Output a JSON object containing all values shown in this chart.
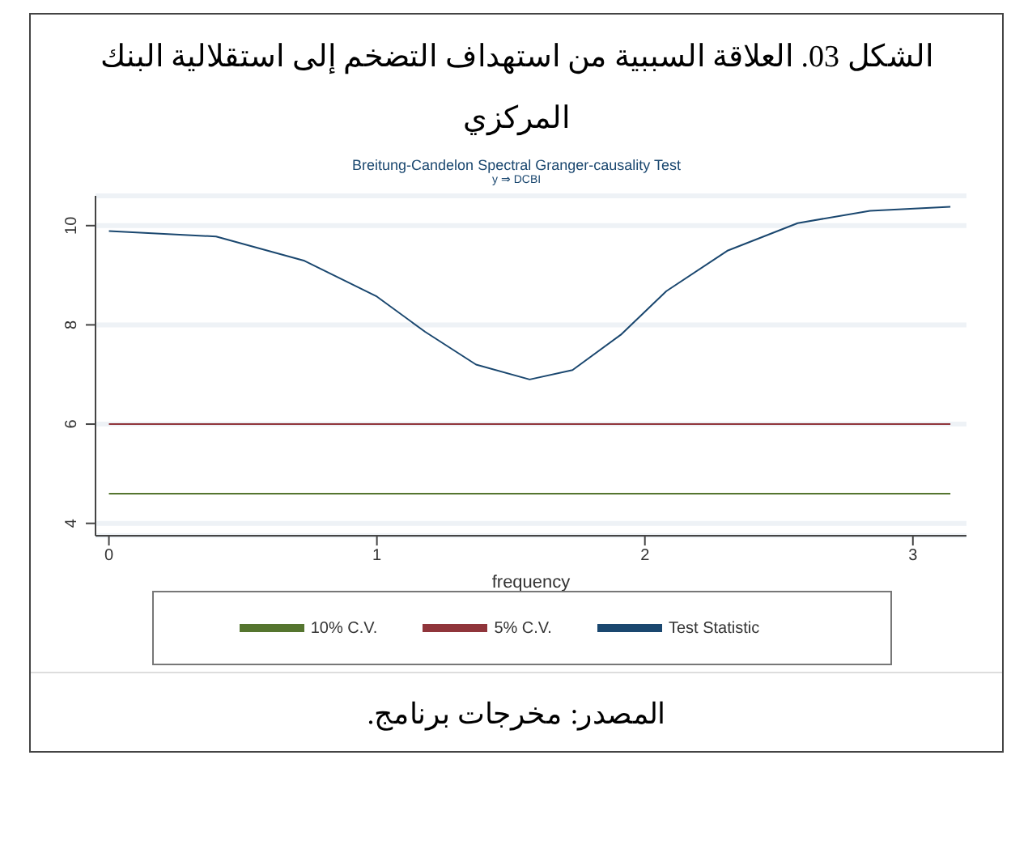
{
  "chart_data": {
    "type": "line",
    "title": "الشكل 03. العلاقة السببية من استهداف التضخم إلى استقلالية البنك المركزي",
    "subtitle": "Breitung-Candelon Spectral Granger-causality Test",
    "xlabel": "frequency",
    "annotations": [
      "y ⇒ DCBI",
      "المصدر: مخرجات برنامج."
    ],
    "series": [
      {
        "name": "Test Statistic",
        "color": "#1a476f",
        "x": [
          0,
          0.4,
          0.73,
          1.0,
          1.18,
          1.37,
          1.57,
          1.73,
          1.91,
          2.08,
          2.31,
          2.57,
          2.84,
          3.14
        ],
        "values": [
          9.89,
          9.78,
          9.29,
          8.57,
          7.86,
          7.2,
          6.9,
          7.09,
          7.8,
          8.68,
          9.5,
          10.05,
          10.3,
          10.38
        ]
      },
      {
        "name": "5% C.V.",
        "color": "#90353b",
        "x": [
          0,
          3.14
        ],
        "values": [
          6,
          6
        ]
      },
      {
        "name": "10% C.V.",
        "color": "#55752f",
        "x": [
          0,
          3.14
        ],
        "values": [
          4.6,
          4.6
        ]
      }
    ],
    "xlim": [
      -0.05,
      3.2
    ],
    "xticks": [
      0,
      1,
      2,
      3
    ],
    "ylim": [
      3.75,
      10.6
    ],
    "yticks": [
      4,
      6,
      8,
      10
    ],
    "grid": "y",
    "legend": "bottom",
    "marker": "none",
    "line_style": "solid"
  }
}
